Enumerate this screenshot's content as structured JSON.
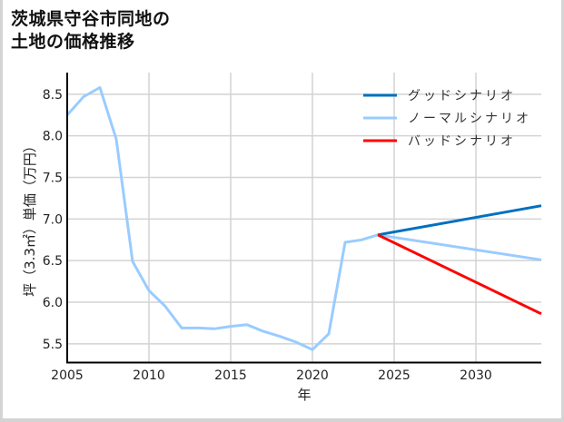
{
  "title": {
    "line1": "茨城県守谷市同地の",
    "line2": "土地の価格推移"
  },
  "chart_data": {
    "type": "line",
    "title": "茨城県守谷市同地の土地の価格推移",
    "xlabel": "年",
    "ylabel": "坪（3.3㎡）単価（万円）",
    "xlim": [
      2005,
      2034
    ],
    "ylim": [
      5.28,
      8.76
    ],
    "xticks": [
      "2005",
      "2010",
      "2015",
      "2020",
      "2025",
      "2030"
    ],
    "yticks": [
      "5.5",
      "6.0",
      "6.5",
      "7.0",
      "7.5",
      "8.0",
      "8.5"
    ],
    "grid": true,
    "legend_position": "upper right",
    "series": [
      {
        "name": "グッドシナリオ",
        "color": "#0070c0",
        "x": [
          2024,
          2034
        ],
        "values": [
          6.81,
          7.16
        ]
      },
      {
        "name": "ノーマルシナリオ",
        "color": "#99ccff",
        "x": [
          2005,
          2006,
          2007,
          2008,
          2009,
          2010,
          2011,
          2012,
          2013,
          2014,
          2015,
          2016,
          2017,
          2018,
          2019,
          2020,
          2021,
          2022,
          2023,
          2024,
          2034
        ],
        "values": [
          8.25,
          8.47,
          8.58,
          7.96,
          6.49,
          6.14,
          5.95,
          5.69,
          5.69,
          5.68,
          5.71,
          5.73,
          5.65,
          5.59,
          5.52,
          5.43,
          5.62,
          6.72,
          6.75,
          6.81,
          6.51
        ]
      },
      {
        "name": "バッドシナリオ",
        "color": "#ff0000",
        "x": [
          2024,
          2034
        ],
        "values": [
          6.81,
          5.86
        ]
      }
    ]
  }
}
